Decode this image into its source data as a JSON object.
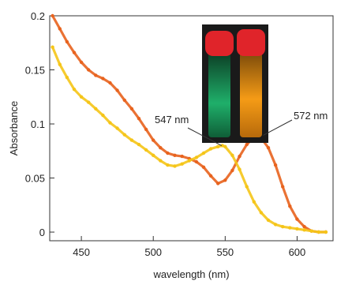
{
  "chart_data": {
    "type": "scatter",
    "xlabel": "wavelength (nm)",
    "ylabel": "Absorbance",
    "xlim": [
      428,
      625
    ],
    "ylim": [
      -0.008,
      0.2
    ],
    "x_ticks": [
      450,
      500,
      550,
      600
    ],
    "x_tick_labels": [
      "450",
      "500",
      "550",
      "600"
    ],
    "y_ticks": [
      0,
      0.05,
      0.1,
      0.15,
      0.2
    ],
    "y_tick_labels": [
      "0",
      "0.05",
      "0.1",
      "0.15",
      "0.2"
    ],
    "grid": false,
    "series": [
      {
        "color": "#E8631E",
        "x": [
          430,
          435,
          440,
          445,
          450,
          455,
          460,
          465,
          470,
          475,
          480,
          485,
          490,
          495,
          500,
          505,
          510,
          515,
          520,
          525,
          530,
          535,
          540,
          545,
          550,
          555,
          560,
          565,
          570,
          573,
          575,
          580,
          585,
          590,
          595,
          600,
          605,
          610,
          615,
          620
        ],
        "y": [
          0.2,
          0.188,
          0.176,
          0.166,
          0.157,
          0.15,
          0.145,
          0.142,
          0.138,
          0.131,
          0.122,
          0.114,
          0.105,
          0.095,
          0.085,
          0.078,
          0.073,
          0.071,
          0.07,
          0.068,
          0.065,
          0.06,
          0.052,
          0.045,
          0.048,
          0.057,
          0.07,
          0.081,
          0.088,
          0.089,
          0.087,
          0.078,
          0.062,
          0.042,
          0.024,
          0.012,
          0.005,
          0.001,
          0.0,
          0.0
        ]
      },
      {
        "color": "#F5C518",
        "x": [
          430,
          435,
          440,
          445,
          450,
          455,
          460,
          465,
          470,
          475,
          480,
          485,
          490,
          495,
          500,
          505,
          510,
          515,
          520,
          525,
          530,
          535,
          540,
          545,
          548,
          550,
          555,
          560,
          565,
          570,
          575,
          580,
          585,
          590,
          595,
          600,
          605,
          610,
          615,
          620
        ],
        "y": [
          0.171,
          0.155,
          0.143,
          0.132,
          0.125,
          0.12,
          0.114,
          0.108,
          0.101,
          0.096,
          0.09,
          0.085,
          0.081,
          0.076,
          0.071,
          0.066,
          0.062,
          0.061,
          0.063,
          0.066,
          0.069,
          0.073,
          0.077,
          0.079,
          0.08,
          0.079,
          0.071,
          0.058,
          0.042,
          0.028,
          0.018,
          0.011,
          0.007,
          0.005,
          0.004,
          0.003,
          0.002,
          0.001,
          0.0,
          0.0
        ]
      }
    ],
    "annotations": [
      {
        "text": "547 nm",
        "points_to": [
          547,
          0.077
        ]
      },
      {
        "text": "572 nm",
        "points_to": [
          572,
          0.088
        ]
      }
    ],
    "inset_photo": {
      "description_colors": {
        "cap": "#E0242A",
        "background": "#1a1a1a",
        "vial_left_glow": "#1FAF6A",
        "vial_right_glow": "#F59B16"
      }
    }
  }
}
